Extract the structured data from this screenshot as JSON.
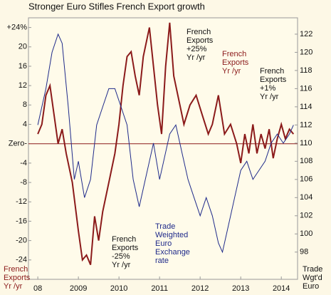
{
  "chart_data": {
    "type": "line",
    "title": "Stronger Euro Stifles French Export growth",
    "xlim": [
      2007.77,
      2014.4
    ],
    "xticks": [
      {
        "value": 2008,
        "label": "08"
      },
      2009,
      2010,
      2011,
      2012,
      2013,
      2014
    ],
    "ylim": [
      -28,
      26
    ],
    "yticks": [
      {
        "value": 24,
        "label": "+24%"
      },
      20,
      16,
      12,
      8,
      4,
      {
        "value": 0,
        "label": "Zero-"
      },
      -4,
      -8,
      -12,
      -16,
      -20,
      -24
    ],
    "y2lim": [
      95,
      123.8
    ],
    "y2ticks": [
      98,
      100,
      102,
      104,
      106,
      108,
      110,
      112,
      114,
      116,
      118,
      120,
      122
    ],
    "series": [
      {
        "name": "French\nExports\nYr /yr",
        "color": "#8b1a1a",
        "x": [
          2008.0,
          2008.1,
          2008.2,
          2008.3,
          2008.4,
          2008.5,
          2008.6,
          2008.7,
          2008.85,
          2009.0,
          2009.1,
          2009.2,
          2009.3,
          2009.4,
          2009.5,
          2009.6,
          2009.75,
          2009.9,
          2010.0,
          2010.1,
          2010.2,
          2010.3,
          2010.4,
          2010.5,
          2010.6,
          2010.75,
          2010.85,
          2010.95,
          2011.05,
          2011.15,
          2011.25,
          2011.35,
          2011.5,
          2011.6,
          2011.75,
          2011.9,
          2012.05,
          2012.2,
          2012.3,
          2012.45,
          2012.6,
          2012.75,
          2012.9,
          2013.0,
          2013.1,
          2013.2,
          2013.3,
          2013.4,
          2013.5,
          2013.6,
          2013.7,
          2013.8,
          2013.9,
          2014.0,
          2014.1,
          2014.2,
          2014.3
        ],
        "values": [
          2,
          4,
          10,
          12,
          6,
          0,
          3,
          -2,
          -8,
          -18,
          -24,
          -23,
          -25,
          -15,
          -20,
          -14,
          -8,
          -2,
          4,
          12,
          18,
          19,
          14,
          10,
          18,
          24,
          16,
          8,
          2,
          16,
          25,
          14,
          8,
          4,
          8,
          10,
          6,
          2,
          4,
          10,
          2,
          4,
          0,
          -4,
          2,
          -2,
          4,
          -2,
          2,
          -1,
          3,
          -3,
          1,
          4,
          1,
          3,
          2
        ]
      },
      {
        "name": "Trade\nWgt'd\nEuro",
        "color": "#1f2a8a",
        "axis": "y2",
        "x": [
          2008.0,
          2008.1,
          2008.2,
          2008.35,
          2008.5,
          2008.6,
          2008.75,
          2008.9,
          2009.0,
          2009.15,
          2009.3,
          2009.45,
          2009.6,
          2009.75,
          2009.9,
          2010.05,
          2010.2,
          2010.35,
          2010.5,
          2010.6,
          2010.75,
          2010.85,
          2011.0,
          2011.1,
          2011.25,
          2011.4,
          2011.55,
          2011.7,
          2011.85,
          2012.0,
          2012.15,
          2012.3,
          2012.45,
          2012.55,
          2012.7,
          2012.85,
          2013.0,
          2013.15,
          2013.3,
          2013.45,
          2013.6,
          2013.75,
          2013.9,
          2014.05,
          2014.2,
          2014.3
        ],
        "values": [
          112,
          114,
          116,
          120,
          122,
          121,
          114,
          106,
          108,
          104,
          106,
          112,
          114,
          116,
          116,
          114,
          112,
          106,
          103,
          105,
          108,
          110,
          106,
          108,
          111,
          112,
          109,
          106,
          104,
          102,
          104,
          102,
          99,
          98,
          101,
          104,
          107,
          108,
          106,
          107,
          108,
          110,
          111,
          110,
          111,
          112
        ]
      }
    ],
    "annotations": [
      {
        "text": "French\nExports\n+25%\nYr /yr",
        "color": "#111111"
      },
      {
        "text": "French\nExports\nYr /yr",
        "color": "#8b1a1a"
      },
      {
        "text": "French\nExports\n+1%\nYr /yr",
        "color": "#111111"
      },
      {
        "text": "Trade\nWeighted\nEuro\nExchange\nrate",
        "color": "#1f2a8a"
      },
      {
        "text": "French\nExports\n-25%\nYr /yr",
        "color": "#111111"
      }
    ]
  }
}
